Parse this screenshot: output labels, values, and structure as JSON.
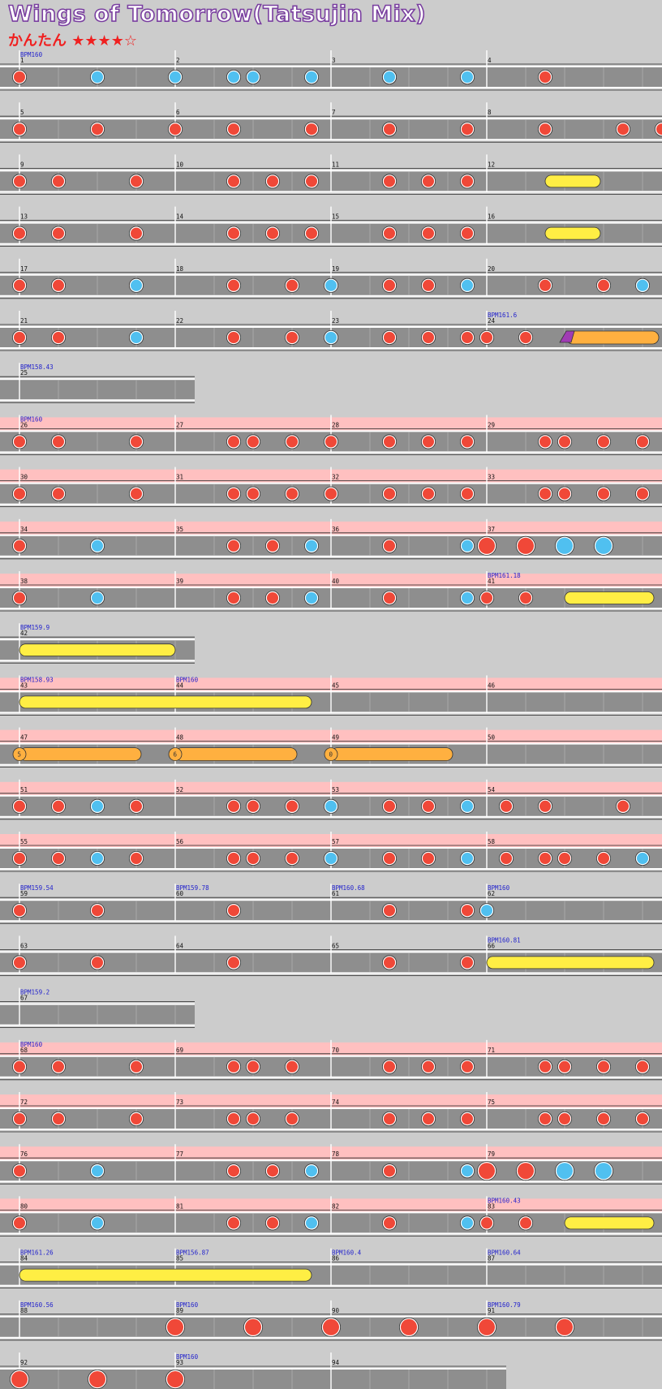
{
  "header": {
    "title": "Wings of Tomorrow(Tatsujin Mix)",
    "difficulty_label": "かんたん",
    "stars": "★★★★☆"
  },
  "colors": {
    "background": "#cccccc",
    "lane": "#8e8e8e",
    "gogo_band": "#ffc0c0",
    "don": "#f04838",
    "ka": "#50c0f0",
    "drumroll": "#ffee44",
    "big_drumroll": "#ffb040",
    "balloon": "#a03cb4"
  },
  "note_legend": {
    "d": "don (red note)",
    "k": "ka (blue note)",
    "D": "big don",
    "K": "big ka",
    "roll": "drumroll (yellow)",
    "broll": "big drumroll (orange)",
    "balloon": "balloon"
  },
  "chart_data": {
    "type": "table",
    "rows": [
      {
        "gogo": false,
        "measures": [
          {
            "n": "1",
            "bpm": "BPM160",
            "notes": "d...k...k...k"
          },
          {
            "n": "2",
            "notes": "...k...k...k"
          },
          {
            "n": "3",
            "notes": "...k...k...d"
          },
          {
            "n": "4",
            "notes": ""
          }
        ]
      },
      {
        "gogo": false,
        "measures": [
          {
            "n": "5",
            "notes": "d...d...d"
          },
          {
            "n": "6",
            "notes": "...d...d...d"
          },
          {
            "n": "7",
            "notes": "...d...d...d"
          },
          {
            "n": "8",
            "notes": "...d...d.d.d"
          }
        ]
      },
      {
        "gogo": false,
        "measures": [
          {
            "n": "9",
            "notes": "d.d...d"
          },
          {
            "n": "10",
            "notes": "...d.d.d"
          },
          {
            "n": "11",
            "notes": "...d.d.d...roll"
          },
          {
            "n": "12",
            "notes": "roll"
          }
        ]
      },
      {
        "gogo": false,
        "measures": [
          {
            "n": "13",
            "notes": "d.d...d"
          },
          {
            "n": "14",
            "notes": "...d.d.d"
          },
          {
            "n": "15",
            "notes": "...d.d.d...roll"
          },
          {
            "n": "16",
            "notes": "roll"
          }
        ]
      },
      {
        "gogo": false,
        "measures": [
          {
            "n": "17",
            "notes": "d.d...k"
          },
          {
            "n": "18",
            "notes": "...d..d.k"
          },
          {
            "n": "19",
            "notes": "...d.d.k"
          },
          {
            "n": "20",
            "notes": "...d..d.k"
          }
        ]
      },
      {
        "gogo": false,
        "measures": [
          {
            "n": "21",
            "notes": "d.d...k"
          },
          {
            "n": "22",
            "notes": "...d..d.k"
          },
          {
            "n": "23",
            "notes": "...d.d.d"
          },
          {
            "n": "24",
            "bpm": "BPM161.6",
            "notes": "d.d.balloon"
          }
        ]
      },
      {
        "gogo": false,
        "short": true,
        "measures": [
          {
            "n": "25",
            "bpm": "BPM158.43",
            "notes": ""
          }
        ]
      },
      {
        "gogo": true,
        "measures": [
          {
            "n": "26",
            "bpm": "BPM160",
            "notes": "d.d...d"
          },
          {
            "n": "27",
            "notes": "...dd.d.d"
          },
          {
            "n": "28",
            "notes": "...d.d.d"
          },
          {
            "n": "29",
            "notes": "...dd.d.d.d"
          }
        ]
      },
      {
        "gogo": true,
        "measures": [
          {
            "n": "30",
            "notes": "d.d...d"
          },
          {
            "n": "31",
            "notes": "...dd.d.d"
          },
          {
            "n": "32",
            "notes": "...d.d.d"
          },
          {
            "n": "33",
            "notes": "...dd.d.d.d"
          }
        ]
      },
      {
        "gogo": true,
        "measures": [
          {
            "n": "34",
            "notes": "d...k"
          },
          {
            "n": "35",
            "notes": "...d.d.k"
          },
          {
            "n": "36",
            "notes": "...d...k"
          },
          {
            "n": "37",
            "notes": "D.D.K.K"
          }
        ]
      },
      {
        "gogo": true,
        "measures": [
          {
            "n": "38",
            "notes": "d...k"
          },
          {
            "n": "39",
            "notes": "...d.d.k"
          },
          {
            "n": "40",
            "notes": "...d...k"
          },
          {
            "n": "41",
            "bpm": "BPM161.18",
            "notes": "d.d.roll"
          }
        ]
      },
      {
        "gogo": false,
        "short": true,
        "measures": [
          {
            "n": "42",
            "bpm": "BPM159.9",
            "notes": "roll"
          }
        ]
      },
      {
        "gogo": true,
        "measures": [
          {
            "n": "43",
            "bpm": "BPM158.93",
            "notes": "roll"
          },
          {
            "n": "44",
            "bpm": "BPM160",
            "notes": "roll"
          },
          {
            "n": "45",
            "notes": ""
          },
          {
            "n": "46",
            "notes": ""
          }
        ]
      },
      {
        "gogo": true,
        "measures": [
          {
            "n": "47",
            "notes": "broll 5"
          },
          {
            "n": "48",
            "notes": "broll 6"
          },
          {
            "n": "49",
            "notes": "broll 0"
          },
          {
            "n": "50",
            "notes": ""
          }
        ]
      },
      {
        "gogo": true,
        "measures": [
          {
            "n": "51",
            "notes": "d.d.k.d"
          },
          {
            "n": "52",
            "notes": "...dd.d.k"
          },
          {
            "n": "53",
            "notes": "...d.d.k.d"
          },
          {
            "n": "54",
            "notes": "...d...d"
          }
        ]
      },
      {
        "gogo": true,
        "measures": [
          {
            "n": "55",
            "notes": "d.d.k.d"
          },
          {
            "n": "56",
            "notes": "...dd.d.k"
          },
          {
            "n": "57",
            "notes": "...d.d.k.d"
          },
          {
            "n": "58",
            "notes": "...dd.d.k.d"
          }
        ]
      },
      {
        "gogo": false,
        "measures": [
          {
            "n": "59",
            "bpm": "BPM159.54",
            "notes": "d...d"
          },
          {
            "n": "60",
            "bpm": "BPM159.78",
            "notes": "...d"
          },
          {
            "n": "61",
            "bpm": "BPM160.68",
            "notes": "...d...d"
          },
          {
            "n": "62",
            "bpm": "BPM160",
            "notes": "k"
          }
        ]
      },
      {
        "gogo": false,
        "measures": [
          {
            "n": "63",
            "notes": "d...d"
          },
          {
            "n": "64",
            "notes": "...d"
          },
          {
            "n": "65",
            "notes": "...d...d"
          },
          {
            "n": "66",
            "bpm": "BPM160.81",
            "notes": "roll"
          }
        ]
      },
      {
        "gogo": false,
        "short": true,
        "measures": [
          {
            "n": "67",
            "bpm": "BPM159.2",
            "notes": ""
          }
        ]
      },
      {
        "gogo": true,
        "measures": [
          {
            "n": "68",
            "bpm": "BPM160",
            "notes": "d.d...d"
          },
          {
            "n": "69",
            "notes": "...dd.d"
          },
          {
            "n": "70",
            "notes": "...d.d.d"
          },
          {
            "n": "71",
            "notes": "...dd.d.d.d"
          }
        ]
      },
      {
        "gogo": true,
        "measures": [
          {
            "n": "72",
            "notes": "d.d...d"
          },
          {
            "n": "73",
            "notes": "...dd.d"
          },
          {
            "n": "74",
            "notes": "...d.d.d"
          },
          {
            "n": "75",
            "notes": "...dd.d.d.d"
          }
        ]
      },
      {
        "gogo": true,
        "measures": [
          {
            "n": "76",
            "notes": "d...k"
          },
          {
            "n": "77",
            "notes": "...d.d.k"
          },
          {
            "n": "78",
            "notes": "...d...k"
          },
          {
            "n": "79",
            "notes": "D.D.K.K"
          }
        ]
      },
      {
        "gogo": true,
        "measures": [
          {
            "n": "80",
            "notes": "d...k"
          },
          {
            "n": "81",
            "notes": "...d.d.k"
          },
          {
            "n": "82",
            "notes": "...d...k"
          },
          {
            "n": "83",
            "bpm": "BPM160.43",
            "notes": "d.d.roll"
          }
        ]
      },
      {
        "gogo": false,
        "measures": [
          {
            "n": "84",
            "bpm": "BPM161.26",
            "notes": "roll"
          },
          {
            "n": "85",
            "bpm": "BPM156.87",
            "notes": "roll"
          },
          {
            "n": "86",
            "bpm": "BPM160.4",
            "notes": ""
          },
          {
            "n": "87",
            "bpm": "BPM160.64",
            "notes": ""
          }
        ]
      },
      {
        "gogo": false,
        "measures": [
          {
            "n": "88",
            "bpm": "BPM160.56",
            "notes": ""
          },
          {
            "n": "89",
            "bpm": "BPM160",
            "notes": "D...D"
          },
          {
            "n": "90",
            "notes": "D...D"
          },
          {
            "n": "91",
            "bpm": "BPM160.79",
            "notes": "D...D"
          }
        ]
      },
      {
        "gogo": false,
        "measures": [
          {
            "n": "92",
            "notes": "D...D...D"
          },
          {
            "n": "93",
            "bpm": "BPM160",
            "notes": ""
          },
          {
            "n": "94",
            "notes": ""
          }
        ]
      }
    ]
  }
}
